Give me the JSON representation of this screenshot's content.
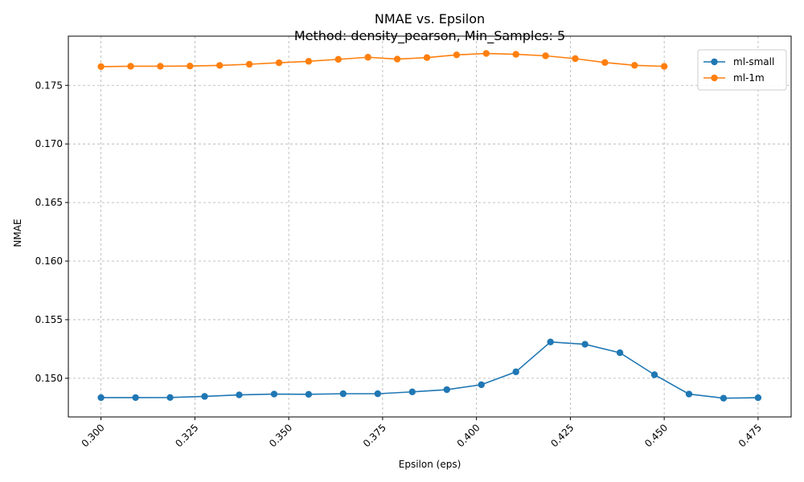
{
  "chart_data": {
    "type": "line",
    "title": "NMAE vs. Epsilon",
    "subtitle": "Method: density_pearson, Min_Samples: 5",
    "xlabel": "Epsilon (eps)",
    "ylabel": "NMAE",
    "xlim": [
      0.2913,
      0.4838
    ],
    "ylim": [
      0.1467,
      0.1792
    ],
    "x_ticks": [
      0.3,
      0.325,
      0.35,
      0.375,
      0.4,
      0.425,
      0.45,
      0.475
    ],
    "x_tick_labels": [
      "0.300",
      "0.325",
      "0.350",
      "0.375",
      "0.400",
      "0.425",
      "0.450",
      "0.475"
    ],
    "y_ticks": [
      0.15,
      0.155,
      0.16,
      0.165,
      0.17,
      0.175
    ],
    "y_tick_labels": [
      "0.150",
      "0.155",
      "0.160",
      "0.165",
      "0.170",
      "0.175"
    ],
    "grid": true,
    "legend_position": "top-right",
    "series": [
      {
        "name": "ml-small",
        "color": "#1f77b4",
        "x": [
          0.3,
          0.3092,
          0.3184,
          0.3276,
          0.3368,
          0.3461,
          0.3553,
          0.3645,
          0.3737,
          0.3829,
          0.3921,
          0.4013,
          0.4105,
          0.4197,
          0.4289,
          0.4382,
          0.4474,
          0.4566,
          0.4658,
          0.475
        ],
        "y": [
          0.14835,
          0.14835,
          0.14836,
          0.14845,
          0.14858,
          0.14865,
          0.14863,
          0.14868,
          0.14868,
          0.14884,
          0.14903,
          0.14945,
          0.15055,
          0.1531,
          0.1529,
          0.15218,
          0.1503,
          0.14865,
          0.1483,
          0.14834
        ]
      },
      {
        "name": "ml-1m",
        "color": "#ff7f0e",
        "x": [
          0.3,
          0.3079,
          0.3158,
          0.3237,
          0.3316,
          0.3395,
          0.3474,
          0.3553,
          0.3632,
          0.3711,
          0.3789,
          0.3868,
          0.3947,
          0.4026,
          0.4105,
          0.4184,
          0.4263,
          0.4342,
          0.4421,
          0.45
        ],
        "y": [
          0.1766,
          0.17663,
          0.17663,
          0.17665,
          0.1767,
          0.1768,
          0.17693,
          0.17705,
          0.17722,
          0.1774,
          0.17724,
          0.17737,
          0.1776,
          0.17772,
          0.17765,
          0.17752,
          0.17728,
          0.17695,
          0.17671,
          0.17662
        ]
      }
    ]
  }
}
